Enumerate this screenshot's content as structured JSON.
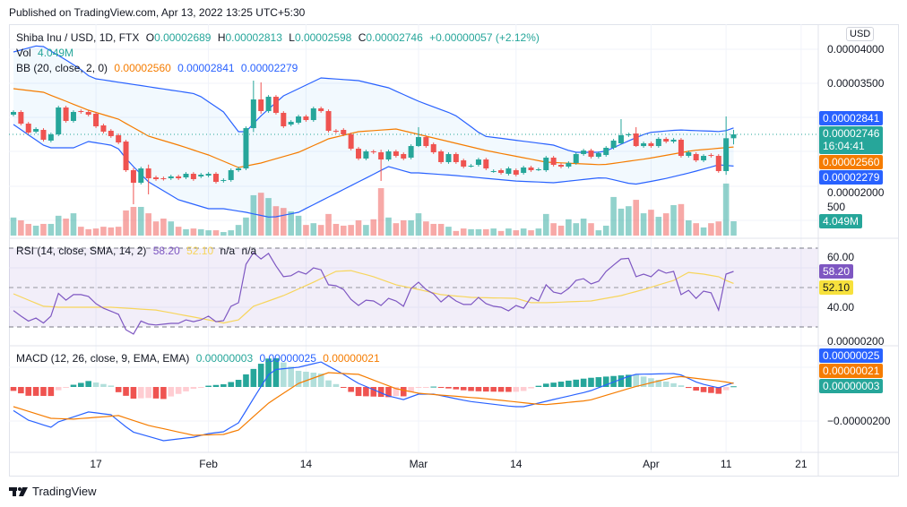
{
  "header": {
    "published": "Published on TradingView.com, Apr 13, 2022 13:25 UTC+5:30"
  },
  "legend": {
    "symbol": "Shiba Inu / USD, 1D, FTX",
    "o_label": "O",
    "o": "0.00002689",
    "h_label": "H",
    "h": "0.00002813",
    "l_label": "L",
    "l": "0.00002598",
    "c_label": "C",
    "c": "0.00002746",
    "change": "+0.00000057 (+2.12%)",
    "vol_label": "Vol",
    "vol": "4.049M",
    "bb_label": "BB (20, close, 2, 0)",
    "bb_basis": "0.00002560",
    "bb_upper": "0.00002841",
    "bb_lower": "0.00002279",
    "rsi_label": "RSI (14, close, SMA, 14, 2)",
    "rsi": "58.20",
    "rsi_ma": "52.10",
    "na1": "n/a",
    "na2": "n/a",
    "macd_label": "MACD (12, 26, close, 9, EMA, EMA)",
    "macd_hist": "0.00000003",
    "macd": "0.00000025",
    "macd_signal": "0.00000021"
  },
  "axis": {
    "currency": "USD",
    "price_ticks": [
      {
        "v": 4000,
        "label": "0.00004000"
      },
      {
        "v": 3500,
        "label": "0.00003500"
      },
      {
        "v": 2000,
        "label": "0.00002000"
      }
    ],
    "volume_tick": "500",
    "rsi_ticks": [
      {
        "v": 60,
        "label": "60.00"
      },
      {
        "v": 40,
        "label": "40.00"
      }
    ],
    "macd_ticks": [
      {
        "v": 200,
        "label": "0.00000200"
      },
      {
        "v": -200,
        "label": "−0.00000200"
      }
    ],
    "date_ticks": [
      {
        "i": 11,
        "label": "17"
      },
      {
        "i": 26,
        "label": "Feb"
      },
      {
        "i": 39,
        "label": "14"
      },
      {
        "i": 54,
        "label": "Mar"
      },
      {
        "i": 67,
        "label": "14"
      },
      {
        "i": 85,
        "label": "Apr"
      },
      {
        "i": 95,
        "label": "11"
      },
      {
        "i": 105,
        "label": "21"
      }
    ]
  },
  "badges": {
    "bb_upper": "0.00002841",
    "last": "0.00002746",
    "countdown": "16:04:41",
    "bb_basis": "0.00002560",
    "bb_lower": "0.00002279",
    "volume": "4.049M",
    "rsi": "58.20",
    "rsi_ma": "52.10",
    "macd": "0.00000025",
    "macd_signal": "0.00000021",
    "macd_hist": "0.00000003"
  },
  "colors": {
    "up": "#26a69a",
    "down": "#ef5350",
    "bb_band": "#2962ff",
    "bb_basis": "#f57c00",
    "rsi": "#7e57c2",
    "rsi_ma": "#f7d55c",
    "macd": "#2962ff",
    "signal": "#f57c00"
  },
  "chart_data": {
    "type": "candlestick",
    "symbol": "SHIB/USD",
    "price_units": "1e-8 USD",
    "last_close": 2746,
    "candles_oc": [
      [
        3036,
        3076
      ],
      [
        3076,
        2904
      ],
      [
        2904,
        2772
      ],
      [
        2786,
        2825
      ],
      [
        2812,
        2667
      ],
      [
        2654,
        2746
      ],
      [
        2746,
        3142
      ],
      [
        3142,
        2944
      ],
      [
        2944,
        3076
      ],
      [
        3089,
        3076
      ],
      [
        3076,
        3036
      ],
      [
        3050,
        2865
      ],
      [
        2878,
        2786
      ],
      [
        2799,
        2720
      ],
      [
        2733,
        2627
      ],
      [
        2640,
        2218
      ],
      [
        2218,
        2033
      ],
      [
        2033,
        2244
      ],
      [
        2244,
        2099
      ],
      [
        2112,
        2086
      ],
      [
        2099,
        2090
      ],
      [
        2099,
        2126
      ],
      [
        2126,
        2099
      ],
      [
        2112,
        2165
      ],
      [
        2165,
        2086
      ],
      [
        2126,
        2152
      ],
      [
        2139,
        2165
      ],
      [
        2165,
        2046
      ],
      [
        2060,
        2073
      ],
      [
        2073,
        2218
      ],
      [
        2218,
        2244
      ],
      [
        2244,
        2838
      ],
      [
        2838,
        3261
      ],
      [
        3261,
        3089
      ],
      [
        3089,
        3300
      ],
      [
        3300,
        3063
      ],
      [
        3063,
        2865
      ],
      [
        2891,
        2931
      ],
      [
        2918,
        3010
      ],
      [
        3010,
        2957
      ],
      [
        2957,
        3129
      ],
      [
        3129,
        3089
      ],
      [
        3089,
        2799
      ],
      [
        2799,
        2786
      ],
      [
        2812,
        2746
      ],
      [
        2746,
        2535
      ],
      [
        2535,
        2390
      ],
      [
        2390,
        2495
      ],
      [
        2495,
        2482
      ],
      [
        2482,
        2376
      ],
      [
        2376,
        2495
      ],
      [
        2495,
        2429
      ],
      [
        2456,
        2390
      ],
      [
        2403,
        2574
      ],
      [
        2574,
        2706
      ],
      [
        2706,
        2574
      ],
      [
        2601,
        2482
      ],
      [
        2495,
        2337
      ],
      [
        2337,
        2456
      ],
      [
        2456,
        2337
      ],
      [
        2363,
        2271
      ],
      [
        2284,
        2284
      ],
      [
        2297,
        2376
      ],
      [
        2376,
        2244
      ],
      [
        2205,
        2205
      ],
      [
        2218,
        2178
      ],
      [
        2165,
        2244
      ],
      [
        2218,
        2152
      ],
      [
        2178,
        2258
      ],
      [
        2258,
        2218
      ],
      [
        2231,
        2231
      ],
      [
        2218,
        2403
      ],
      [
        2403,
        2297
      ],
      [
        2297,
        2271
      ],
      [
        2271,
        2324
      ],
      [
        2324,
        2456
      ],
      [
        2456,
        2508
      ],
      [
        2508,
        2416
      ],
      [
        2416,
        2469
      ],
      [
        2442,
        2548
      ],
      [
        2548,
        2654
      ],
      [
        2614,
        2733
      ],
      [
        2733,
        2746
      ],
      [
        2759,
        2574
      ],
      [
        2574,
        2614
      ],
      [
        2614,
        2574
      ],
      [
        2574,
        2680
      ],
      [
        2680,
        2640
      ],
      [
        2640,
        2667
      ],
      [
        2667,
        2429
      ],
      [
        2429,
        2482
      ],
      [
        2456,
        2363
      ],
      [
        2363,
        2429
      ],
      [
        2442,
        2429
      ],
      [
        2429,
        2205
      ],
      [
        2205,
        2689
      ],
      [
        2689,
        2746
      ]
    ],
    "wicks_hl": {
      "16": [
        2250,
        1716
      ],
      "18": [
        2300,
        1862
      ],
      "32": [
        3538,
        2780
      ],
      "33": [
        3512,
        3050
      ],
      "49": [
        2520,
        2060
      ],
      "54": [
        2852,
        2560
      ],
      "81": [
        2970,
        2600
      ],
      "83": [
        2852,
        2560
      ],
      "95": [
        3010,
        2150
      ],
      "96": [
        2813,
        2598
      ]
    },
    "volume_m": [
      5.1,
      4.3,
      3.3,
      2.8,
      3.3,
      3.3,
      5.6,
      4.8,
      6.3,
      2.5,
      1.8,
      2.0,
      2.5,
      2.3,
      2.5,
      7.1,
      8.1,
      8.1,
      6.3,
      4.0,
      4.8,
      4.0,
      2.5,
      1.8,
      2.0,
      1.8,
      1.5,
      1.5,
      1.0,
      1.5,
      3.0,
      5.1,
      11.4,
      12.1,
      10.6,
      8.3,
      7.8,
      6.8,
      5.6,
      3.0,
      3.5,
      3.0,
      6.1,
      3.3,
      2.8,
      3.0,
      4.3,
      3.0,
      4.6,
      13.4,
      5.1,
      3.5,
      4.3,
      4.3,
      6.3,
      4.0,
      3.3,
      3.3,
      2.5,
      1.3,
      2.0,
      1.8,
      1.8,
      1.8,
      2.0,
      1.3,
      2.0,
      1.5,
      2.0,
      1.5,
      2.0,
      6.1,
      3.5,
      2.8,
      4.6,
      3.5,
      4.8,
      3.5,
      1.5,
      2.8,
      10.9,
      7.6,
      8.3,
      10.1,
      6.3,
      7.3,
      5.3,
      6.3,
      8.6,
      8.9,
      4.3,
      3.5,
      2.3,
      3.5,
      4.0,
      14.7,
      4.049
    ],
    "bb_upper_kp": [
      [
        0,
        3960
      ],
      [
        3.6,
        4066
      ],
      [
        7.2,
        3828
      ],
      [
        9.8,
        3644
      ],
      [
        10.2,
        3578
      ],
      [
        24.5,
        3340
      ],
      [
        28,
        3076
      ],
      [
        30,
        2786
      ],
      [
        31,
        2786
      ],
      [
        32.9,
        3010
      ],
      [
        36,
        3314
      ],
      [
        41,
        3578
      ],
      [
        46,
        3538
      ],
      [
        50,
        3432
      ],
      [
        54,
        3234
      ],
      [
        58.8,
        3036
      ],
      [
        62.7,
        2720
      ],
      [
        72,
        2588
      ],
      [
        74.7,
        2482
      ],
      [
        78.6,
        2482
      ],
      [
        81.8,
        2640
      ],
      [
        84.6,
        2772
      ],
      [
        88.6,
        2812
      ],
      [
        94.6,
        2786
      ],
      [
        96,
        2841
      ]
    ],
    "bb_lower_kp": [
      [
        0,
        2891
      ],
      [
        4.5,
        2548
      ],
      [
        8,
        2548
      ],
      [
        10,
        2640
      ],
      [
        13.7,
        2574
      ],
      [
        15.3,
        2350
      ],
      [
        18,
        2046
      ],
      [
        22,
        1782
      ],
      [
        26,
        1650
      ],
      [
        28,
        1650
      ],
      [
        31,
        1598
      ],
      [
        34.4,
        1518
      ],
      [
        38,
        1598
      ],
      [
        42,
        1822
      ],
      [
        46,
        2046
      ],
      [
        50,
        2271
      ],
      [
        53,
        2178
      ],
      [
        54,
        2178
      ],
      [
        59,
        2139
      ],
      [
        66.7,
        2060
      ],
      [
        72,
        2033
      ],
      [
        78.6,
        2112
      ],
      [
        82.7,
        2007
      ],
      [
        86.6,
        2086
      ],
      [
        90.6,
        2192
      ],
      [
        94,
        2297
      ],
      [
        96,
        2279
      ]
    ],
    "bb_basis_kp": [
      [
        0,
        3419
      ],
      [
        4,
        3366
      ],
      [
        10,
        3102
      ],
      [
        14,
        2970
      ],
      [
        18,
        2720
      ],
      [
        22,
        2588
      ],
      [
        26,
        2442
      ],
      [
        30,
        2258
      ],
      [
        33,
        2324
      ],
      [
        38,
        2482
      ],
      [
        42,
        2680
      ],
      [
        46,
        2786
      ],
      [
        51,
        2825
      ],
      [
        55,
        2720
      ],
      [
        63,
        2508
      ],
      [
        71,
        2337
      ],
      [
        78.6,
        2297
      ],
      [
        84.6,
        2390
      ],
      [
        90.6,
        2508
      ],
      [
        96,
        2560
      ]
    ],
    "rsi": [
      38.3,
      35.5,
      33,
      34.5,
      32,
      35.5,
      47,
      43.6,
      46.4,
      46.4,
      45.5,
      41.8,
      39.5,
      38,
      36.4,
      28.6,
      26.4,
      33,
      31.4,
      31,
      31.4,
      31.8,
      31.8,
      33.6,
      32.7,
      33.6,
      35.5,
      32.7,
      33.2,
      40.5,
      42.3,
      61.8,
      67.7,
      64.5,
      67.3,
      61,
      55.5,
      56,
      58.2,
      56.8,
      60,
      59,
      51.4,
      50.9,
      49,
      44,
      40.9,
      43.6,
      43.2,
      40.9,
      44.5,
      43.2,
      40.5,
      49.5,
      52.7,
      49,
      46.8,
      42.7,
      45.9,
      43.2,
      41.4,
      41.4,
      45,
      41.8,
      40.5,
      40,
      38.2,
      40.9,
      39.5,
      45,
      43.2,
      51.4,
      47.7,
      46.8,
      49.5,
      53.6,
      54.5,
      51.8,
      53.2,
      58.2,
      61.4,
      64.5,
      64.8,
      55.5,
      56.8,
      55.5,
      59,
      57.3,
      58.2,
      46.4,
      48.6,
      44.5,
      48.2,
      47.3,
      38.6,
      56.8,
      58.2
    ],
    "rsi_ma_kp": [
      [
        0,
        46.8
      ],
      [
        4,
        40.5
      ],
      [
        6,
        40
      ],
      [
        13,
        40
      ],
      [
        19,
        38.6
      ],
      [
        26,
        33.6
      ],
      [
        28,
        32
      ],
      [
        30,
        33.6
      ],
      [
        32,
        40.5
      ],
      [
        36,
        45.9
      ],
      [
        40,
        52.7
      ],
      [
        43,
        58.2
      ],
      [
        45,
        58.6
      ],
      [
        48,
        55.5
      ],
      [
        51,
        51.4
      ],
      [
        54,
        49
      ],
      [
        57,
        46.4
      ],
      [
        61,
        45
      ],
      [
        67,
        44.5
      ],
      [
        69,
        42.3
      ],
      [
        71,
        42.3
      ],
      [
        77,
        43.2
      ],
      [
        81,
        45.9
      ],
      [
        84,
        49
      ],
      [
        88,
        53.6
      ],
      [
        90,
        57.7
      ],
      [
        92,
        56.8
      ],
      [
        94,
        55.5
      ],
      [
        95,
        53.6
      ],
      [
        96,
        52.1
      ]
    ],
    "rsi_levels": [
      70,
      50,
      30
    ],
    "macd_kp": [
      [
        0,
        -139
      ],
      [
        2,
        -195
      ],
      [
        5,
        -237
      ],
      [
        6,
        -205
      ],
      [
        10,
        -147
      ],
      [
        13,
        -163
      ],
      [
        15.8,
        -263
      ],
      [
        20,
        -316
      ],
      [
        24,
        -295
      ],
      [
        26,
        -274
      ],
      [
        28,
        -263
      ],
      [
        30,
        -211
      ],
      [
        32,
        -68
      ],
      [
        34.4,
        100
      ],
      [
        38,
        116
      ],
      [
        41,
        147
      ],
      [
        44,
        74
      ],
      [
        46,
        21
      ],
      [
        50,
        -53
      ],
      [
        52,
        -74
      ],
      [
        54,
        -42
      ],
      [
        56,
        -42
      ],
      [
        60.7,
        -84
      ],
      [
        66.7,
        -116
      ],
      [
        68,
        -116
      ],
      [
        71.5,
        -79
      ],
      [
        76.7,
        -26
      ],
      [
        82.7,
        74
      ],
      [
        88.6,
        79
      ],
      [
        91.4,
        21
      ],
      [
        94,
        -5
      ],
      [
        96,
        25
      ]
    ],
    "signal_kp": [
      [
        0,
        -116
      ],
      [
        5,
        -184
      ],
      [
        8,
        -189
      ],
      [
        14,
        -168
      ],
      [
        18,
        -226
      ],
      [
        24,
        -284
      ],
      [
        28,
        -279
      ],
      [
        30,
        -253
      ],
      [
        34,
        -95
      ],
      [
        38,
        21
      ],
      [
        42,
        84
      ],
      [
        46,
        74
      ],
      [
        51,
        -10
      ],
      [
        54,
        -37
      ],
      [
        62.7,
        -68
      ],
      [
        70.7,
        -105
      ],
      [
        76.7,
        -79
      ],
      [
        82.7,
        0
      ],
      [
        88.6,
        63
      ],
      [
        94.6,
        32
      ],
      [
        96,
        21
      ]
    ]
  },
  "footer": {
    "brand": "TradingView"
  }
}
